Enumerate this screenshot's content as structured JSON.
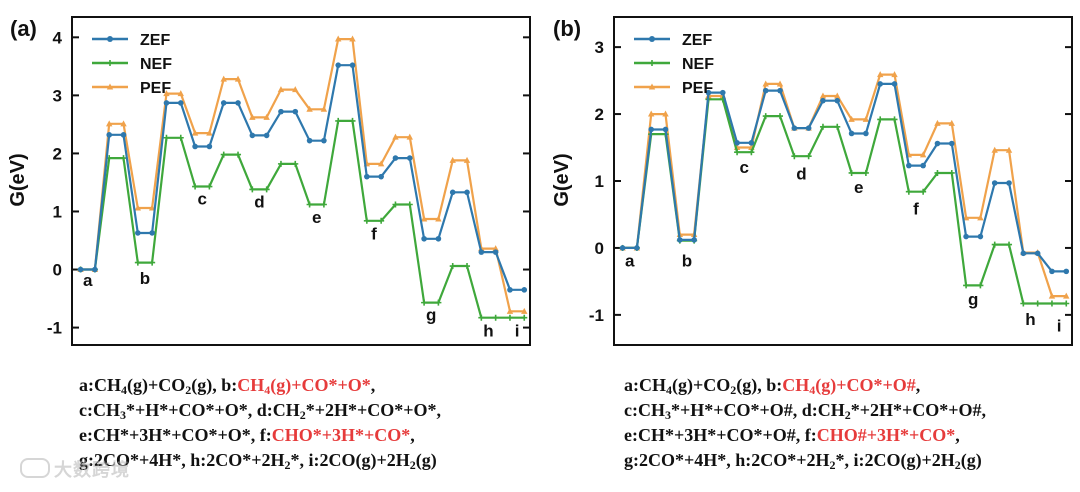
{
  "colors": {
    "ZEF": "#2e78ad",
    "NEF": "#3fa83b",
    "PEF": "#f0a24b",
    "highlight": "#e63b3b"
  },
  "chart_data": [
    {
      "id": "a",
      "type": "line",
      "panel_label": "(a)",
      "ylabel": "G(eV)",
      "ylim": [
        -1.3,
        4.35
      ],
      "yticks": [
        -1,
        0,
        1,
        2,
        3,
        4
      ],
      "legend": {
        "position": "top-left",
        "entries": [
          "ZEF",
          "NEF",
          "PEF"
        ]
      },
      "x": [
        1,
        2,
        3,
        4,
        5,
        6,
        7,
        8,
        9,
        10,
        11,
        12,
        13,
        14,
        15,
        16,
        17,
        18,
        19,
        20,
        21,
        22,
        23,
        24,
        25,
        26,
        27,
        28
      ],
      "series": [
        {
          "name": "ZEF",
          "values": [
            0.0,
            0.0,
            2.32,
            2.32,
            0.63,
            0.63,
            2.87,
            2.87,
            2.12,
            2.12,
            2.87,
            2.87,
            2.31,
            2.31,
            2.72,
            2.72,
            2.22,
            2.22,
            3.52,
            3.52,
            1.6,
            1.6,
            1.92,
            1.92,
            0.53,
            0.53,
            1.33,
            1.33
          ]
        },
        {
          "name": "NEF",
          "values": [
            0.0,
            0.0,
            1.92,
            1.92,
            0.12,
            0.12,
            2.27,
            2.27,
            1.43,
            1.43,
            1.98,
            1.98,
            1.38,
            1.38,
            1.82,
            1.82,
            1.12,
            1.12,
            2.56,
            2.56,
            0.84,
            0.84,
            1.12,
            1.12,
            -0.57,
            -0.57,
            0.06,
            0.06
          ]
        },
        {
          "name": "PEF",
          "values": [
            0.0,
            0.0,
            2.51,
            2.51,
            1.06,
            1.06,
            3.03,
            3.03,
            2.35,
            2.35,
            3.28,
            3.28,
            2.62,
            2.62,
            3.1,
            3.1,
            2.76,
            2.76,
            3.97,
            3.97,
            1.82,
            1.82,
            2.28,
            2.28,
            0.87,
            0.87,
            1.88,
            1.88
          ]
        }
      ],
      "tail": {
        "x": [
          28,
          29,
          30,
          31,
          32
        ],
        "ZEF": [
          1.33,
          0.3,
          0.3,
          -0.35,
          -0.35
        ],
        "NEF": [
          0.06,
          -0.83,
          -0.83,
          -0.83,
          -0.83
        ],
        "PEF": [
          1.88,
          0.36,
          0.36,
          -0.72,
          -0.72
        ]
      },
      "state_labels": [
        {
          "text": "a",
          "x": 1.5,
          "y": -0.28
        },
        {
          "text": "b",
          "x": 5.5,
          "y": -0.25
        },
        {
          "text": "c",
          "x": 9.5,
          "y": 1.12
        },
        {
          "text": "d",
          "x": 13.5,
          "y": 1.07
        },
        {
          "text": "e",
          "x": 17.5,
          "y": 0.8
        },
        {
          "text": "f",
          "x": 21.5,
          "y": 0.52
        },
        {
          "text": "g",
          "x": 25.5,
          "y": -0.88
        },
        {
          "text": "h",
          "x": 29.5,
          "y": -1.15
        },
        {
          "text": "i",
          "x": 31.5,
          "y": -1.15
        }
      ],
      "xrange": [
        0.4,
        32.4
      ]
    },
    {
      "id": "b",
      "type": "line",
      "panel_label": "(b)",
      "ylabel": "G(eV)",
      "ylim": [
        -1.45,
        3.45
      ],
      "yticks": [
        -1,
        0,
        1,
        2,
        3
      ],
      "legend": {
        "position": "top-left",
        "entries": [
          "ZEF",
          "NEF",
          "PEF"
        ]
      },
      "x": [
        1,
        2,
        3,
        4,
        5,
        6,
        7,
        8,
        9,
        10,
        11,
        12,
        13,
        14,
        15,
        16,
        17,
        18,
        19,
        20,
        21,
        22,
        23,
        24,
        25,
        26,
        27,
        28
      ],
      "series": [
        {
          "name": "ZEF",
          "values": [
            0.0,
            0.0,
            1.77,
            1.77,
            0.12,
            0.12,
            2.32,
            2.32,
            1.57,
            1.57,
            2.35,
            2.35,
            1.79,
            1.79,
            2.2,
            2.2,
            1.71,
            1.71,
            2.45,
            2.45,
            1.23,
            1.23,
            1.56,
            1.56,
            0.17,
            0.17,
            0.97,
            0.97
          ]
        },
        {
          "name": "NEF",
          "values": [
            0.0,
            0.0,
            1.7,
            1.7,
            0.11,
            0.11,
            2.22,
            2.22,
            1.43,
            1.43,
            1.97,
            1.97,
            1.37,
            1.37,
            1.81,
            1.81,
            1.12,
            1.12,
            1.92,
            1.92,
            0.84,
            0.84,
            1.12,
            1.12,
            -0.56,
            -0.56,
            0.05,
            0.05
          ]
        },
        {
          "name": "PEF",
          "values": [
            0.0,
            0.0,
            2.0,
            2.0,
            0.2,
            0.2,
            2.27,
            2.27,
            1.5,
            1.5,
            2.45,
            2.45,
            1.79,
            1.79,
            2.27,
            2.27,
            1.92,
            1.92,
            2.59,
            2.59,
            1.39,
            1.39,
            1.86,
            1.86,
            0.45,
            0.45,
            1.46,
            1.46
          ]
        }
      ],
      "tail": {
        "x": [
          28,
          29,
          30,
          31,
          32
        ],
        "ZEF": [
          0.97,
          -0.08,
          -0.08,
          -0.35,
          -0.35
        ],
        "NEF": [
          0.05,
          -0.83,
          -0.83,
          -0.83,
          -0.83
        ],
        "PEF": [
          1.46,
          -0.07,
          -0.07,
          -0.72,
          -0.72
        ]
      },
      "state_labels": [
        {
          "text": "a",
          "x": 1.5,
          "y": -0.28
        },
        {
          "text": "b",
          "x": 5.5,
          "y": -0.28
        },
        {
          "text": "c",
          "x": 9.5,
          "y": 1.12
        },
        {
          "text": "d",
          "x": 13.5,
          "y": 1.02
        },
        {
          "text": "e",
          "x": 17.5,
          "y": 0.82
        },
        {
          "text": "f",
          "x": 21.5,
          "y": 0.5
        },
        {
          "text": "g",
          "x": 25.5,
          "y": -0.85
        },
        {
          "text": "h",
          "x": 29.5,
          "y": -1.15
        },
        {
          "text": "i",
          "x": 31.5,
          "y": -1.25
        }
      ],
      "xrange": [
        0.4,
        32.4
      ]
    }
  ],
  "captions": {
    "a": {
      "l1": {
        "p1": "a:CH",
        "s1": "4",
        "p2": "(g)+CO",
        "s2": "2",
        "p3": "(g), b:",
        "h1": "CH",
        "hs1": "4",
        "h2": "(g)+CO*+O*",
        "p4": ","
      },
      "l2": {
        "p1": "c:CH",
        "s1": "3",
        "p2": "*+H*+CO*+O*, d:CH",
        "s2": "2",
        "p3": "*+2H*+CO*+O*,"
      },
      "l3": {
        "p1": "e:CH*+3H*+CO*+O*, f:",
        "h1": "CHO*+3H*+CO*",
        "p2": ","
      },
      "l4": {
        "p1": "g:2CO*+4H*, h:2CO*+2H",
        "s1": "2",
        "p2": "*, i:2CO(g)+2H",
        "s2": "2",
        "p3": "(g)"
      }
    },
    "b": {
      "l1": {
        "p1": "a:CH",
        "s1": "4",
        "p2": "(g)+CO",
        "s2": "2",
        "p3": "(g), b:",
        "h1": "CH",
        "hs1": "4",
        "h2": "(g)+CO*+O#",
        "p4": ","
      },
      "l2": {
        "p1": "c:CH",
        "s1": "3",
        "p2": "*+H*+CO*+O#, d:CH",
        "s2": "2",
        "p3": "*+2H*+CO*+O#,"
      },
      "l3": {
        "p1": "e:CH*+3H*+CO*+O#, f:",
        "h1": "CHO#+3H*+CO*",
        "p2": ","
      },
      "l4": {
        "p1": "g:2CO*+4H*, h:2CO*+2H",
        "s1": "2",
        "p2": "*, i:2CO(g)+2H",
        "s2": "2",
        "p3": "(g)"
      }
    }
  },
  "watermark": "大数跨境"
}
